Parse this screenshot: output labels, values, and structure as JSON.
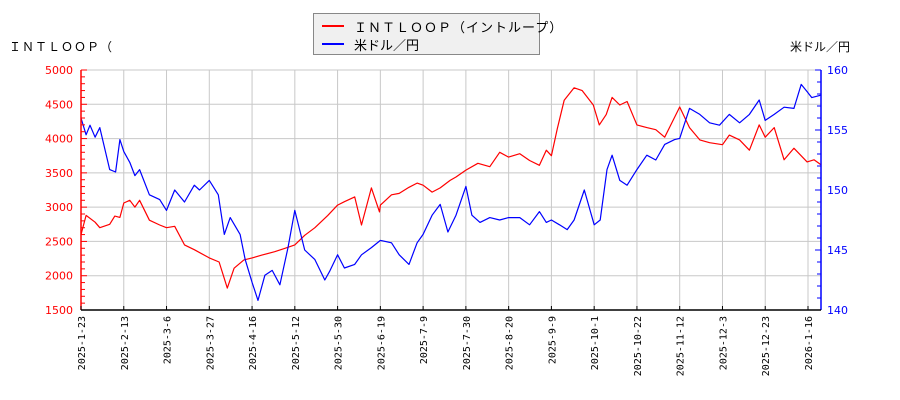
{
  "legend": {
    "items": [
      {
        "label": "ＩＮＴＬＯＯＰ（イントループ）",
        "color": "#ff0000"
      },
      {
        "label": "米ドル／円",
        "color": "#0000ff"
      }
    ]
  },
  "axes": {
    "left_title": "ＩＮＴＬＯＯＰ（",
    "right_title": "米ドル／円"
  },
  "colors": {
    "left_axis": "#ff0000",
    "right_axis": "#0000ff",
    "grid": "#c8c8c8",
    "background": "#ffffff"
  },
  "chart_data": {
    "type": "line",
    "title": "",
    "xlabel": "",
    "ylabel": "ＩＮＴＬＯＯＰ（",
    "ylabel_right": "米ドル／円",
    "ylim": [
      1500,
      5000
    ],
    "ylim_right": [
      140,
      160
    ],
    "yticks": [
      1500,
      2000,
      2500,
      3000,
      3500,
      4000,
      4500,
      5000
    ],
    "yticks_right": [
      140,
      145,
      150,
      155,
      160
    ],
    "grid": true,
    "legend_position": "top-center",
    "x_tick_labels": [
      "2025-1-23",
      "2025-2-13",
      "2025-3-6",
      "2025-3-27",
      "2025-4-16",
      "2025-5-12",
      "2025-5-30",
      "2025-6-19",
      "2025-7-9",
      "2025-7-30",
      "2025-8-20",
      "2025-9-9",
      "2025-10-1",
      "2025-10-22",
      "2025-11-12",
      "2025-12-3",
      "2025-12-23",
      "2026-1-16"
    ],
    "x_tick_pos": [
      0,
      1,
      2,
      3,
      4,
      5,
      6,
      7,
      8,
      9,
      10,
      11,
      12,
      13,
      14,
      15,
      16,
      17
    ],
    "x_max": 17.3,
    "series": [
      {
        "name": "ＩＮＴＬＯＯＰ（イントループ）",
        "axis": "left",
        "color": "#ff0000",
        "x": [
          0,
          0.12,
          0.33,
          0.44,
          0.67,
          0.79,
          0.91,
          1.0,
          1.14,
          1.26,
          1.37,
          1.6,
          1.84,
          2.0,
          2.19,
          2.42,
          2.65,
          3.0,
          3.23,
          3.42,
          3.58,
          3.81,
          4.0,
          4.23,
          4.53,
          4.77,
          5.0,
          5.23,
          5.47,
          5.77,
          6.0,
          6.16,
          6.4,
          6.56,
          6.79,
          6.98,
          7.0,
          7.26,
          7.44,
          7.67,
          7.86,
          8.0,
          8.21,
          8.4,
          8.63,
          8.77,
          9.0,
          9.28,
          9.56,
          9.79,
          10.0,
          10.26,
          10.49,
          10.72,
          10.88,
          11.0,
          11.14,
          11.3,
          11.53,
          11.72,
          11.98,
          12.12,
          12.28,
          12.42,
          12.6,
          12.77,
          13.0,
          13.23,
          13.44,
          13.65,
          14.0,
          14.23,
          14.47,
          14.7,
          15.0,
          15.16,
          15.4,
          15.63,
          15.86,
          16.0,
          16.21,
          16.44,
          16.67,
          16.98,
          17.14,
          17.3
        ],
        "values": [
          2600,
          2880,
          2780,
          2700,
          2750,
          2870,
          2850,
          3060,
          3100,
          3000,
          3100,
          2810,
          2740,
          2700,
          2720,
          2450,
          2380,
          2260,
          2200,
          1820,
          2110,
          2230,
          2260,
          2300,
          2350,
          2400,
          2450,
          2590,
          2700,
          2880,
          3030,
          3080,
          3150,
          2740,
          3280,
          2930,
          3030,
          3180,
          3200,
          3290,
          3350,
          3320,
          3220,
          3280,
          3390,
          3440,
          3540,
          3640,
          3590,
          3800,
          3730,
          3780,
          3680,
          3610,
          3830,
          3750,
          4150,
          4560,
          4740,
          4700,
          4490,
          4200,
          4350,
          4600,
          4490,
          4540,
          4200,
          4160,
          4130,
          4020,
          4460,
          4160,
          3980,
          3940,
          3910,
          4050,
          3980,
          3830,
          4200,
          4020,
          4160,
          3690,
          3860,
          3660,
          3690,
          3620
        ]
      },
      {
        "name": "米ドル／円",
        "axis": "right",
        "color": "#0000ff",
        "x": [
          0,
          0.12,
          0.21,
          0.33,
          0.44,
          0.67,
          0.81,
          0.91,
          1.0,
          1.14,
          1.26,
          1.37,
          1.6,
          1.84,
          2.0,
          2.19,
          2.42,
          2.65,
          2.77,
          3.0,
          3.21,
          3.35,
          3.49,
          3.72,
          3.84,
          4.0,
          4.14,
          4.3,
          4.47,
          4.65,
          4.84,
          5.0,
          5.23,
          5.47,
          5.7,
          5.81,
          6.0,
          6.16,
          6.4,
          6.56,
          6.79,
          7.0,
          7.26,
          7.44,
          7.67,
          7.86,
          8.0,
          8.21,
          8.4,
          8.58,
          8.77,
          9.0,
          9.14,
          9.33,
          9.56,
          9.79,
          10.0,
          10.26,
          10.49,
          10.72,
          10.88,
          11.0,
          11.19,
          11.37,
          11.53,
          11.77,
          12.0,
          12.14,
          12.3,
          12.42,
          12.6,
          12.77,
          13.0,
          13.23,
          13.44,
          13.65,
          13.88,
          14.0,
          14.23,
          14.47,
          14.7,
          14.93,
          15.16,
          15.4,
          15.63,
          15.86,
          16.0,
          16.21,
          16.44,
          16.67,
          16.84,
          16.98,
          17.09,
          17.3
        ],
        "values": [
          156.0,
          154.6,
          155.4,
          154.4,
          155.2,
          151.7,
          151.5,
          154.2,
          153.2,
          152.3,
          151.2,
          151.7,
          149.6,
          149.2,
          148.3,
          150.0,
          149.0,
          150.4,
          150.0,
          150.8,
          149.6,
          146.3,
          147.7,
          146.3,
          144.2,
          142.3,
          140.8,
          142.9,
          143.3,
          142.1,
          145.2,
          148.3,
          145.0,
          144.2,
          142.5,
          143.2,
          144.6,
          143.5,
          143.8,
          144.6,
          145.2,
          145.8,
          145.6,
          144.6,
          143.8,
          145.6,
          146.3,
          147.9,
          148.8,
          146.5,
          147.9,
          150.3,
          147.9,
          147.3,
          147.7,
          147.5,
          147.7,
          147.7,
          147.1,
          148.2,
          147.3,
          147.5,
          147.1,
          146.7,
          147.5,
          150.0,
          147.1,
          147.5,
          151.7,
          152.9,
          150.8,
          150.4,
          151.7,
          152.9,
          152.5,
          153.8,
          154.2,
          154.3,
          156.8,
          156.3,
          155.6,
          155.4,
          156.3,
          155.6,
          156.3,
          157.5,
          155.8,
          156.3,
          156.9,
          156.8,
          158.8,
          158.2,
          157.7,
          157.9
        ]
      }
    ]
  }
}
